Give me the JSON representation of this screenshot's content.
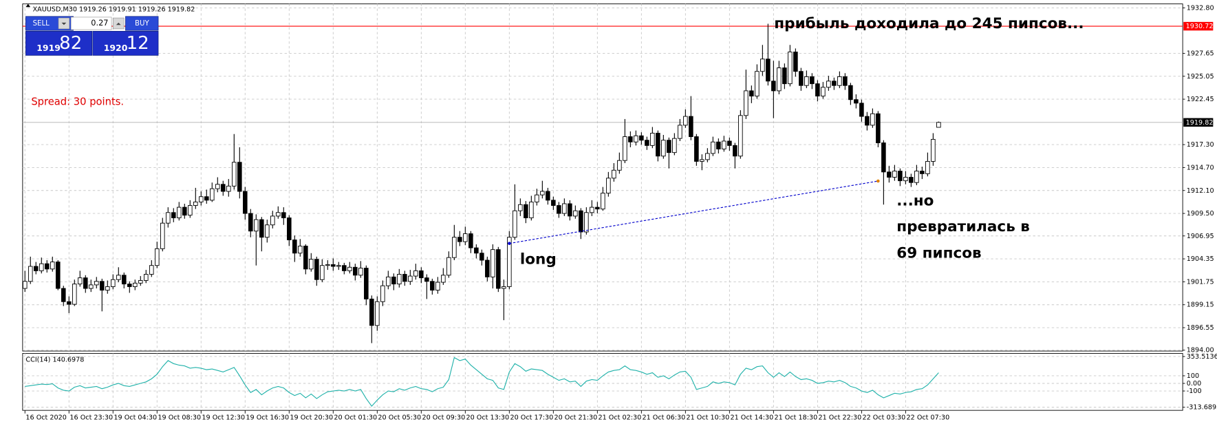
{
  "chart_data": [
    {
      "type": "candlestick",
      "title": "XAUUSD,M30  1919.26 1919.91 1919.26 1919.82",
      "spread": "Spread: 30 points.",
      "trade_panel": {
        "sell": "SELL",
        "lot": "0.27",
        "buy": "BUY",
        "bid_big": "1919",
        "bid_small": "82",
        "ask_big": "1920",
        "ask_small": "12"
      },
      "annotations": [
        "прибыль доходила до 245 пипсов...",
        "long",
        "...но",
        "превратилась в",
        "69 пипсов"
      ],
      "xtick_labels": [
        "16 Oct 2020",
        "16 Oct 23:30",
        "19 Oct 04:30",
        "19 Oct 08:30",
        "19 Oct 12:30",
        "19 Oct 16:30",
        "19 Oct 20:30",
        "20 Oct 01:30",
        "20 Oct 05:30",
        "20 Oct 09:30",
        "20 Oct 13:30",
        "20 Oct 17:30",
        "20 Oct 21:30",
        "21 Oct 02:30",
        "21 Oct 06:30",
        "21 Oct 10:30",
        "21 Oct 14:30",
        "21 Oct 18:30",
        "21 Oct 22:30",
        "22 Oct 03:30",
        "22 Oct 07:30"
      ],
      "ylim": [
        1893.9,
        1933.25
      ],
      "yticks": [
        {
          "value": 1932.8,
          "label": "1932.80"
        },
        {
          "value": 1927.65,
          "label": "1927.65"
        },
        1925.05,
        1922.45,
        {
          "value": 1917.3,
          "label": "1917.30"
        },
        {
          "value": 1914.7,
          "label": "1914.70"
        },
        {
          "value": 1912.1,
          "label": "1912.10"
        },
        {
          "value": 1909.5,
          "label": "1909.50"
        },
        1906.95,
        1904.35,
        1901.75,
        1899.15,
        1896.55,
        {
          "value": 1894,
          "label": "1894.00"
        }
      ],
      "grid": true,
      "alert_line": {
        "value": 1930.72,
        "color": "#ff0000"
      },
      "trendline": {
        "start": [
          88,
          1906.1
        ],
        "end": [
          155,
          1913.17
        ],
        "color": "#0000cc"
      },
      "candles": [
        [
          1901.0,
          1903.0,
          1900.6,
          1901.8
        ],
        [
          1901.8,
          1904.6,
          1901.5,
          1903.5
        ],
        [
          1903.5,
          1904.0,
          1902.6,
          1903.0
        ],
        [
          1903.0,
          1904.5,
          1902.7,
          1903.8
        ],
        [
          1903.8,
          1904.2,
          1902.8,
          1903.2
        ],
        [
          1903.2,
          1904.6,
          1902.9,
          1904.0
        ],
        [
          1904.0,
          1904.2,
          1900.8,
          1901.0
        ],
        [
          1901.0,
          1901.3,
          1899.0,
          1899.5
        ],
        [
          1899.5,
          1900.1,
          1898.2,
          1899.2
        ],
        [
          1899.2,
          1902.0,
          1899.0,
          1901.5
        ],
        [
          1901.5,
          1903.0,
          1901.2,
          1902.2
        ],
        [
          1902.2,
          1902.5,
          1900.5,
          1901.0
        ],
        [
          1901.0,
          1902.0,
          1900.6,
          1901.4
        ],
        [
          1901.4,
          1902.3,
          1901.0,
          1901.8
        ],
        [
          1901.8,
          1902.1,
          1898.4,
          1900.8
        ],
        [
          1900.8,
          1901.9,
          1900.4,
          1901.2
        ],
        [
          1901.2,
          1902.6,
          1900.9,
          1902.0
        ],
        [
          1902.0,
          1903.4,
          1901.7,
          1902.5
        ],
        [
          1902.5,
          1902.8,
          1901.0,
          1901.5
        ],
        [
          1901.5,
          1901.8,
          1900.5,
          1901.2
        ],
        [
          1901.2,
          1902.0,
          1900.8,
          1901.6
        ],
        [
          1901.6,
          1902.4,
          1901.3,
          1901.9
        ],
        [
          1901.9,
          1903.1,
          1901.6,
          1902.6
        ],
        [
          1902.6,
          1904.2,
          1902.3,
          1903.6
        ],
        [
          1903.6,
          1906.3,
          1903.3,
          1905.5
        ],
        [
          1905.5,
          1909.0,
          1905.2,
          1908.4
        ],
        [
          1908.4,
          1910.2,
          1907.9,
          1909.6
        ],
        [
          1909.6,
          1910.1,
          1908.5,
          1909.0
        ],
        [
          1909.0,
          1910.8,
          1908.7,
          1910.2
        ],
        [
          1910.2,
          1910.6,
          1908.9,
          1909.3
        ],
        [
          1909.3,
          1911.0,
          1909.0,
          1910.4
        ],
        [
          1910.4,
          1912.4,
          1910.0,
          1910.8
        ],
        [
          1910.8,
          1912.0,
          1910.4,
          1911.4
        ],
        [
          1911.4,
          1912.2,
          1910.6,
          1911.0
        ],
        [
          1911.0,
          1913.0,
          1910.8,
          1912.3
        ],
        [
          1912.3,
          1913.6,
          1911.9,
          1912.8
        ],
        [
          1912.8,
          1913.2,
          1911.5,
          1912.0
        ],
        [
          1912.0,
          1913.4,
          1911.4,
          1912.6
        ],
        [
          1912.6,
          1918.5,
          1912.2,
          1915.3
        ],
        [
          1915.3,
          1917.0,
          1911.2,
          1912.0
        ],
        [
          1912.0,
          1912.5,
          1908.8,
          1909.5
        ],
        [
          1909.5,
          1910.0,
          1906.8,
          1907.5
        ],
        [
          1907.5,
          1909.4,
          1903.6,
          1908.8
        ],
        [
          1908.8,
          1909.1,
          1905.2,
          1906.8
        ],
        [
          1906.8,
          1908.8,
          1906.2,
          1908.2
        ],
        [
          1908.2,
          1909.8,
          1907.8,
          1909.2
        ],
        [
          1909.2,
          1910.3,
          1908.9,
          1909.6
        ],
        [
          1909.6,
          1910.2,
          1908.2,
          1909.0
        ],
        [
          1909.0,
          1909.3,
          1905.8,
          1906.5
        ],
        [
          1906.5,
          1907.0,
          1904.0,
          1905.0
        ],
        [
          1905.0,
          1906.6,
          1904.6,
          1905.8
        ],
        [
          1905.8,
          1906.0,
          1902.6,
          1903.2
        ],
        [
          1903.2,
          1905.0,
          1902.9,
          1904.3
        ],
        [
          1904.3,
          1904.6,
          1901.3,
          1902.0
        ],
        [
          1902.0,
          1904.3,
          1901.7,
          1903.6
        ],
        [
          1903.6,
          1904.2,
          1903.1,
          1903.7
        ],
        [
          1903.7,
          1904.4,
          1903.0,
          1903.5
        ],
        [
          1903.5,
          1904.0,
          1903.1,
          1903.6
        ],
        [
          1903.6,
          1903.9,
          1902.6,
          1903.0
        ],
        [
          1903.0,
          1904.0,
          1902.7,
          1903.4
        ],
        [
          1903.4,
          1903.8,
          1901.9,
          1902.5
        ],
        [
          1902.5,
          1904.1,
          1902.2,
          1903.3
        ],
        [
          1903.3,
          1903.6,
          1899.1,
          1899.8
        ],
        [
          1899.8,
          1900.2,
          1894.8,
          1896.8
        ],
        [
          1896.8,
          1900.1,
          1896.2,
          1899.5
        ],
        [
          1899.5,
          1901.9,
          1899.0,
          1901.3
        ],
        [
          1901.3,
          1903.0,
          1900.9,
          1902.3
        ],
        [
          1902.3,
          1902.7,
          1900.8,
          1901.5
        ],
        [
          1901.5,
          1903.2,
          1901.1,
          1902.6
        ],
        [
          1902.6,
          1903.0,
          1901.3,
          1901.8
        ],
        [
          1901.8,
          1903.1,
          1901.4,
          1902.4
        ],
        [
          1902.4,
          1903.8,
          1902.0,
          1903.0
        ],
        [
          1903.0,
          1903.4,
          1901.6,
          1902.2
        ],
        [
          1902.2,
          1902.6,
          1899.8,
          1901.8
        ],
        [
          1901.8,
          1902.1,
          1900.3,
          1900.8
        ],
        [
          1900.8,
          1902.3,
          1900.4,
          1901.7
        ],
        [
          1901.7,
          1903.3,
          1901.4,
          1902.5
        ],
        [
          1902.5,
          1905.2,
          1902.2,
          1904.5
        ],
        [
          1904.5,
          1908.2,
          1904.2,
          1906.8
        ],
        [
          1906.8,
          1907.5,
          1905.8,
          1906.3
        ],
        [
          1906.3,
          1908.0,
          1905.9,
          1907.2
        ],
        [
          1907.2,
          1907.5,
          1905.0,
          1905.6
        ],
        [
          1905.6,
          1906.0,
          1904.4,
          1905.0
        ],
        [
          1905.0,
          1905.4,
          1903.6,
          1904.2
        ],
        [
          1904.2,
          1904.6,
          1901.8,
          1902.3
        ],
        [
          1902.3,
          1906.0,
          1901.0,
          1905.4
        ],
        [
          1905.4,
          1905.7,
          1900.6,
          1901.0
        ],
        [
          1901.0,
          1902.0,
          1897.4,
          1901.2
        ],
        [
          1901.2,
          1907.5,
          1900.9,
          1906.8
        ],
        [
          1906.8,
          1912.8,
          1906.5,
          1909.8
        ],
        [
          1909.8,
          1911.2,
          1909.2,
          1910.5
        ],
        [
          1910.5,
          1910.9,
          1908.4,
          1909.0
        ],
        [
          1909.0,
          1911.5,
          1908.7,
          1910.8
        ],
        [
          1910.8,
          1912.3,
          1910.4,
          1911.6
        ],
        [
          1911.6,
          1913.2,
          1911.2,
          1912.0
        ],
        [
          1912.0,
          1912.4,
          1910.5,
          1911.0
        ],
        [
          1911.0,
          1911.4,
          1909.9,
          1910.4
        ],
        [
          1910.4,
          1910.8,
          1909.0,
          1909.5
        ],
        [
          1909.5,
          1911.2,
          1909.2,
          1910.6
        ],
        [
          1910.6,
          1911.0,
          1908.7,
          1909.2
        ],
        [
          1909.2,
          1910.4,
          1908.9,
          1909.8
        ],
        [
          1909.8,
          1910.1,
          1906.6,
          1907.4
        ],
        [
          1907.4,
          1910.2,
          1907.1,
          1909.6
        ],
        [
          1909.6,
          1911.0,
          1909.2,
          1910.2
        ],
        [
          1910.2,
          1910.8,
          1909.5,
          1910.0
        ],
        [
          1910.0,
          1912.5,
          1909.8,
          1911.8
        ],
        [
          1911.8,
          1914.2,
          1911.4,
          1913.5
        ],
        [
          1913.5,
          1915.2,
          1913.1,
          1914.4
        ],
        [
          1914.4,
          1916.4,
          1914.0,
          1915.5
        ],
        [
          1915.5,
          1920.2,
          1915.2,
          1918.2
        ],
        [
          1918.2,
          1918.8,
          1917.0,
          1917.6
        ],
        [
          1917.6,
          1918.9,
          1917.2,
          1918.3
        ],
        [
          1918.3,
          1918.7,
          1917.3,
          1917.8
        ],
        [
          1917.8,
          1918.2,
          1916.7,
          1917.2
        ],
        [
          1917.2,
          1919.3,
          1916.9,
          1918.6
        ],
        [
          1918.6,
          1918.9,
          1915.4,
          1916.0
        ],
        [
          1916.0,
          1918.4,
          1915.7,
          1917.8
        ],
        [
          1917.8,
          1918.1,
          1914.6,
          1916.4
        ],
        [
          1916.4,
          1918.6,
          1916.1,
          1918.0
        ],
        [
          1918.0,
          1920.2,
          1917.7,
          1919.5
        ],
        [
          1919.5,
          1921.3,
          1919.2,
          1920.5
        ],
        [
          1920.5,
          1922.8,
          1917.8,
          1918.2
        ],
        [
          1918.2,
          1918.5,
          1914.9,
          1915.4
        ],
        [
          1915.4,
          1916.2,
          1914.4,
          1915.6
        ],
        [
          1915.6,
          1916.9,
          1915.3,
          1916.3
        ],
        [
          1916.3,
          1918.2,
          1916.0,
          1917.6
        ],
        [
          1917.6,
          1918.0,
          1916.3,
          1916.8
        ],
        [
          1916.8,
          1918.3,
          1916.5,
          1917.7
        ],
        [
          1917.7,
          1918.1,
          1916.6,
          1917.2
        ],
        [
          1917.2,
          1917.5,
          1914.6,
          1916.0
        ],
        [
          1916.0,
          1921.2,
          1915.7,
          1920.6
        ],
        [
          1920.6,
          1925.8,
          1920.2,
          1923.4
        ],
        [
          1923.4,
          1924.0,
          1922.0,
          1922.8
        ],
        [
          1922.8,
          1926.4,
          1922.5,
          1925.6
        ],
        [
          1925.6,
          1928.6,
          1925.1,
          1927.0
        ],
        [
          1927.0,
          1931.0,
          1924.0,
          1924.5
        ],
        [
          1924.5,
          1926.8,
          1920.3,
          1923.4
        ],
        [
          1923.4,
          1926.8,
          1923.0,
          1926.0
        ],
        [
          1926.0,
          1926.5,
          1923.6,
          1924.2
        ],
        [
          1924.2,
          1928.6,
          1923.9,
          1927.8
        ],
        [
          1927.8,
          1928.2,
          1925.0,
          1925.6
        ],
        [
          1925.6,
          1926.0,
          1923.4,
          1924.0
        ],
        [
          1924.0,
          1925.7,
          1923.7,
          1925.0
        ],
        [
          1925.0,
          1925.4,
          1923.6,
          1924.2
        ],
        [
          1924.2,
          1924.6,
          1922.2,
          1922.8
        ],
        [
          1922.8,
          1924.4,
          1922.5,
          1923.8
        ],
        [
          1923.8,
          1925.1,
          1923.4,
          1924.5
        ],
        [
          1924.5,
          1924.9,
          1923.5,
          1924.0
        ],
        [
          1924.0,
          1925.6,
          1923.7,
          1925.0
        ],
        [
          1925.0,
          1925.4,
          1923.5,
          1924.0
        ],
        [
          1924.0,
          1924.3,
          1921.8,
          1922.4
        ],
        [
          1922.4,
          1923.0,
          1921.4,
          1922.0
        ],
        [
          1922.0,
          1922.4,
          1919.9,
          1920.5
        ],
        [
          1920.5,
          1921.0,
          1918.9,
          1919.5
        ],
        [
          1919.5,
          1921.4,
          1919.2,
          1920.8
        ],
        [
          1920.8,
          1921.1,
          1917.0,
          1917.5
        ],
        [
          1917.5,
          1917.8,
          1910.5,
          1914.2
        ],
        [
          1914.2,
          1914.9,
          1913.0,
          1913.6
        ],
        [
          1913.6,
          1915.0,
          1913.2,
          1914.3
        ],
        [
          1914.3,
          1914.6,
          1912.6,
          1913.2
        ],
        [
          1913.2,
          1914.3,
          1912.8,
          1913.6
        ],
        [
          1913.6,
          1914.0,
          1912.5,
          1913.0
        ],
        [
          1913.0,
          1915.0,
          1912.7,
          1914.3
        ],
        [
          1914.3,
          1914.8,
          1913.4,
          1914.0
        ],
        [
          1914.0,
          1916.4,
          1913.7,
          1915.4
        ],
        [
          1915.4,
          1918.6,
          1914.9,
          1917.9
        ],
        [
          1919.26,
          1919.91,
          1919.26,
          1919.82
        ]
      ]
    },
    {
      "type": "line",
      "title": "CCI(14) 140.6978",
      "color": "#20b2aa",
      "ylim": [
        -313.6893,
        353.5136
      ],
      "yticks": [
        353.5136,
        100,
        {
          "value": 0,
          "label": "0.00"
        },
        -100,
        -313.6893
      ],
      "values": [
        -40,
        -30,
        -20,
        -10,
        -15,
        -5,
        -60,
        -90,
        -100,
        -50,
        -30,
        -60,
        -50,
        -40,
        -70,
        -50,
        -20,
        0,
        -30,
        -40,
        -20,
        0,
        20,
        60,
        120,
        220,
        300,
        260,
        240,
        230,
        200,
        210,
        200,
        180,
        190,
        170,
        150,
        180,
        210,
        100,
        -20,
        -120,
        -80,
        -150,
        -100,
        -60,
        -40,
        -60,
        -120,
        -160,
        -130,
        -190,
        -140,
        -200,
        -150,
        -110,
        -100,
        -90,
        -100,
        -80,
        -100,
        -80,
        -200,
        -300,
        -220,
        -150,
        -100,
        -110,
        -70,
        -90,
        -60,
        -40,
        -70,
        -80,
        -110,
        -70,
        -50,
        50,
        340,
        300,
        320,
        240,
        180,
        120,
        60,
        40,
        -60,
        -80,
        150,
        260,
        220,
        160,
        190,
        180,
        170,
        120,
        80,
        40,
        60,
        20,
        30,
        -40,
        30,
        50,
        40,
        100,
        150,
        170,
        180,
        230,
        180,
        170,
        150,
        120,
        140,
        80,
        100,
        60,
        110,
        150,
        160,
        80,
        -80,
        -60,
        -40,
        20,
        0,
        20,
        10,
        -20,
        120,
        200,
        180,
        220,
        230,
        140,
        80,
        140,
        90,
        150,
        90,
        50,
        60,
        40,
        0,
        10,
        30,
        20,
        40,
        10,
        -40,
        -60,
        -100,
        -120,
        -90,
        -150,
        -190,
        -160,
        -130,
        -140,
        -120,
        -110,
        -80,
        -70,
        -20,
        60,
        140.6978
      ]
    }
  ]
}
